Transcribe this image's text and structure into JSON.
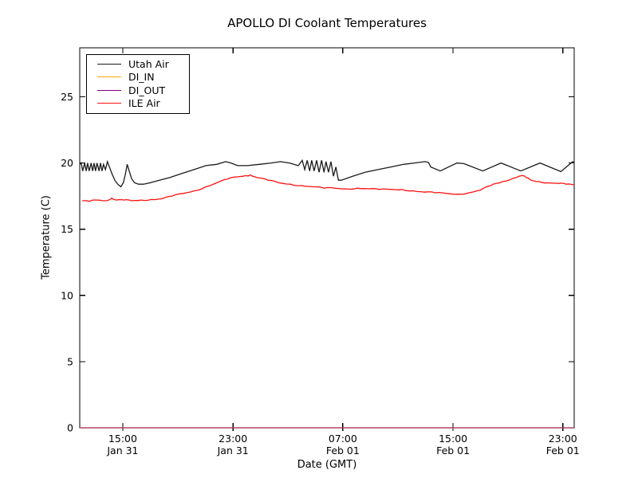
{
  "title": "APOLLO DI Coolant Temperatures",
  "chart_data": {
    "type": "line",
    "title": "APOLLO DI Coolant Temperatures",
    "xlabel": "Date (GMT)",
    "ylabel": "Temperature (C)",
    "ylim": [
      0,
      28.7
    ],
    "yticks": [
      0,
      5,
      10,
      15,
      20,
      25
    ],
    "grid": false,
    "legend_position": "upper left",
    "xticks": [
      {
        "frac": 0.087,
        "time": "15:00",
        "date": "Jan 31"
      },
      {
        "frac": 0.31,
        "time": "23:00",
        "date": "Jan 31"
      },
      {
        "frac": 0.532,
        "time": "07:00",
        "date": "Feb 01"
      },
      {
        "frac": 0.755,
        "time": "15:00",
        "date": "Feb 01"
      },
      {
        "frac": 0.977,
        "time": "23:00",
        "date": "Feb 01"
      }
    ],
    "axis_color": "#000000",
    "series": [
      {
        "name": "Utah Air",
        "color": "#1a1a1a",
        "points": [
          [
            0,
            19.9
          ],
          [
            0.003,
            20.0
          ],
          [
            0.006,
            19.4
          ],
          [
            0.01,
            20.0
          ],
          [
            0.013,
            19.4
          ],
          [
            0.016,
            20.0
          ],
          [
            0.019,
            19.4
          ],
          [
            0.023,
            20.0
          ],
          [
            0.026,
            19.4
          ],
          [
            0.029,
            20.0
          ],
          [
            0.032,
            19.4
          ],
          [
            0.035,
            20.0
          ],
          [
            0.039,
            19.4
          ],
          [
            0.042,
            20.0
          ],
          [
            0.045,
            19.4
          ],
          [
            0.048,
            19.9
          ],
          [
            0.052,
            19.5
          ],
          [
            0.056,
            20.1
          ],
          [
            0.061,
            19.6
          ],
          [
            0.065,
            19.2
          ],
          [
            0.071,
            18.7
          ],
          [
            0.077,
            18.4
          ],
          [
            0.083,
            18.2
          ],
          [
            0.088,
            18.5
          ],
          [
            0.092,
            19.1
          ],
          [
            0.096,
            19.9
          ],
          [
            0.1,
            19.4
          ],
          [
            0.105,
            18.8
          ],
          [
            0.111,
            18.5
          ],
          [
            0.119,
            18.4
          ],
          [
            0.129,
            18.4
          ],
          [
            0.142,
            18.5
          ],
          [
            0.161,
            18.7
          ],
          [
            0.182,
            18.9
          ],
          [
            0.206,
            19.2
          ],
          [
            0.231,
            19.5
          ],
          [
            0.255,
            19.8
          ],
          [
            0.277,
            19.9
          ],
          [
            0.295,
            20.1
          ],
          [
            0.306,
            20.0
          ],
          [
            0.319,
            19.8
          ],
          [
            0.339,
            19.8
          ],
          [
            0.363,
            19.9
          ],
          [
            0.387,
            20.0
          ],
          [
            0.406,
            20.1
          ],
          [
            0.424,
            20.0
          ],
          [
            0.442,
            19.8
          ],
          [
            0.45,
            20.2
          ],
          [
            0.455,
            19.5
          ],
          [
            0.46,
            20.2
          ],
          [
            0.465,
            19.4
          ],
          [
            0.469,
            20.2
          ],
          [
            0.474,
            19.4
          ],
          [
            0.479,
            20.2
          ],
          [
            0.484,
            19.3
          ],
          [
            0.489,
            20.2
          ],
          [
            0.494,
            19.3
          ],
          [
            0.498,
            20.1
          ],
          [
            0.503,
            19.3
          ],
          [
            0.508,
            20.1
          ],
          [
            0.513,
            19.0
          ],
          [
            0.518,
            19.7
          ],
          [
            0.523,
            18.7
          ],
          [
            0.529,
            18.7
          ],
          [
            0.552,
            19.0
          ],
          [
            0.577,
            19.3
          ],
          [
            0.603,
            19.5
          ],
          [
            0.629,
            19.7
          ],
          [
            0.655,
            19.9
          ],
          [
            0.677,
            20.0
          ],
          [
            0.698,
            20.1
          ],
          [
            0.705,
            20.05
          ],
          [
            0.71,
            19.7
          ],
          [
            0.729,
            19.4
          ],
          [
            0.763,
            20.0
          ],
          [
            0.777,
            19.95
          ],
          [
            0.815,
            19.4
          ],
          [
            0.852,
            20.0
          ],
          [
            0.892,
            19.4
          ],
          [
            0.931,
            20.0
          ],
          [
            0.973,
            19.35
          ],
          [
            0.997,
            20.1
          ],
          [
            1.0,
            20.0
          ]
        ]
      },
      {
        "name": "DI_IN",
        "color": "#ffa500",
        "points": [
          [
            0,
            0
          ],
          [
            1,
            0
          ]
        ]
      },
      {
        "name": "DI_OUT",
        "color": "#800080",
        "opacity": 0.75,
        "points": [
          [
            0,
            0
          ],
          [
            1,
            0
          ]
        ]
      },
      {
        "name": "ILE Air",
        "color": "#ff1010",
        "jitter": 0.05,
        "points": [
          [
            0.005,
            17.15
          ],
          [
            0.019,
            17.1
          ],
          [
            0.035,
            17.2
          ],
          [
            0.052,
            17.15
          ],
          [
            0.065,
            17.35
          ],
          [
            0.074,
            17.2
          ],
          [
            0.089,
            17.2
          ],
          [
            0.105,
            17.15
          ],
          [
            0.124,
            17.2
          ],
          [
            0.145,
            17.25
          ],
          [
            0.166,
            17.3
          ],
          [
            0.187,
            17.5
          ],
          [
            0.21,
            17.7
          ],
          [
            0.232,
            17.9
          ],
          [
            0.255,
            18.2
          ],
          [
            0.277,
            18.5
          ],
          [
            0.3,
            18.8
          ],
          [
            0.319,
            18.95
          ],
          [
            0.335,
            19.05
          ],
          [
            0.345,
            19.1
          ],
          [
            0.358,
            18.9
          ],
          [
            0.381,
            18.7
          ],
          [
            0.403,
            18.5
          ],
          [
            0.426,
            18.4
          ],
          [
            0.448,
            18.3
          ],
          [
            0.471,
            18.2
          ],
          [
            0.494,
            18.1
          ],
          [
            0.516,
            18.1
          ],
          [
            0.539,
            18.05
          ],
          [
            0.561,
            18.1
          ],
          [
            0.584,
            18.05
          ],
          [
            0.606,
            18.0
          ],
          [
            0.629,
            18.0
          ],
          [
            0.652,
            18.0
          ],
          [
            0.674,
            17.9
          ],
          [
            0.697,
            17.8
          ],
          [
            0.719,
            17.75
          ],
          [
            0.742,
            17.7
          ],
          [
            0.765,
            17.65
          ],
          [
            0.787,
            17.75
          ],
          [
            0.81,
            17.95
          ],
          [
            0.832,
            18.3
          ],
          [
            0.842,
            18.45
          ],
          [
            0.855,
            18.6
          ],
          [
            0.877,
            18.85
          ],
          [
            0.894,
            19.05
          ],
          [
            0.903,
            18.9
          ],
          [
            0.913,
            18.7
          ],
          [
            0.929,
            18.6
          ],
          [
            0.948,
            18.5
          ],
          [
            0.968,
            18.45
          ],
          [
            0.984,
            18.4
          ],
          [
            1.0,
            18.35
          ]
        ]
      }
    ]
  }
}
